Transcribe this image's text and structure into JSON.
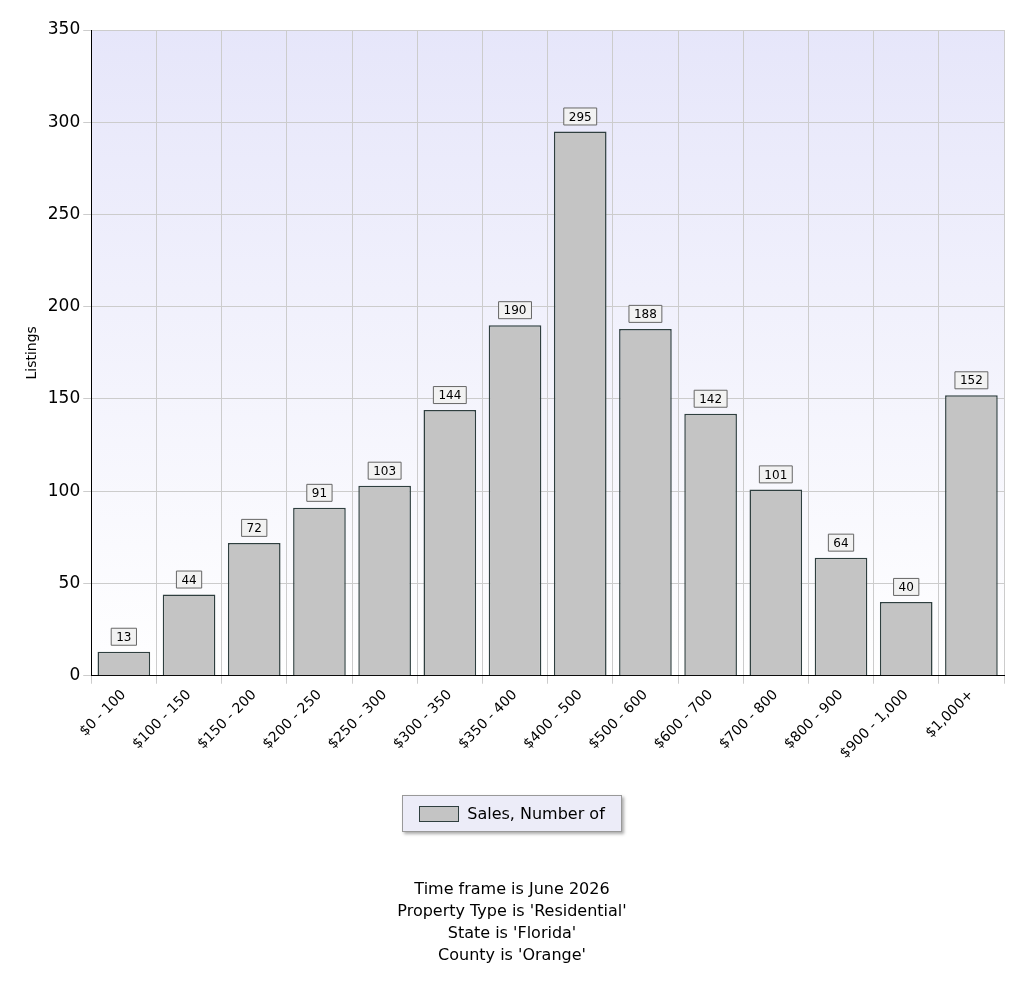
{
  "chart_data": {
    "type": "bar",
    "ylabel": "Listings",
    "categories": [
      "$0 - 100",
      "$100 - 150",
      "$150 - 200",
      "$200 - 250",
      "$250 - 300",
      "$300 - 350",
      "$350 - 400",
      "$400 - 500",
      "$500 - 600",
      "$600 - 700",
      "$700 - 800",
      "$800 - 900",
      "$900 - 1,000",
      "$1,000+"
    ],
    "series": [
      {
        "name": "Sales, Number of",
        "color": "#c4c4c4",
        "values": [
          13,
          44,
          72,
          91,
          103,
          144,
          190,
          295,
          188,
          142,
          101,
          64,
          40,
          152
        ]
      }
    ],
    "ylim": [
      0,
      350
    ],
    "yticks": [
      0,
      50,
      100,
      150,
      200,
      250,
      300,
      350
    ],
    "grid": true,
    "legend": "bottom",
    "data_labels": true,
    "annotations": [
      "Time frame is June 2026",
      "Property Type is 'Residential'",
      "State is 'Florida'",
      "County is 'Orange'"
    ]
  }
}
